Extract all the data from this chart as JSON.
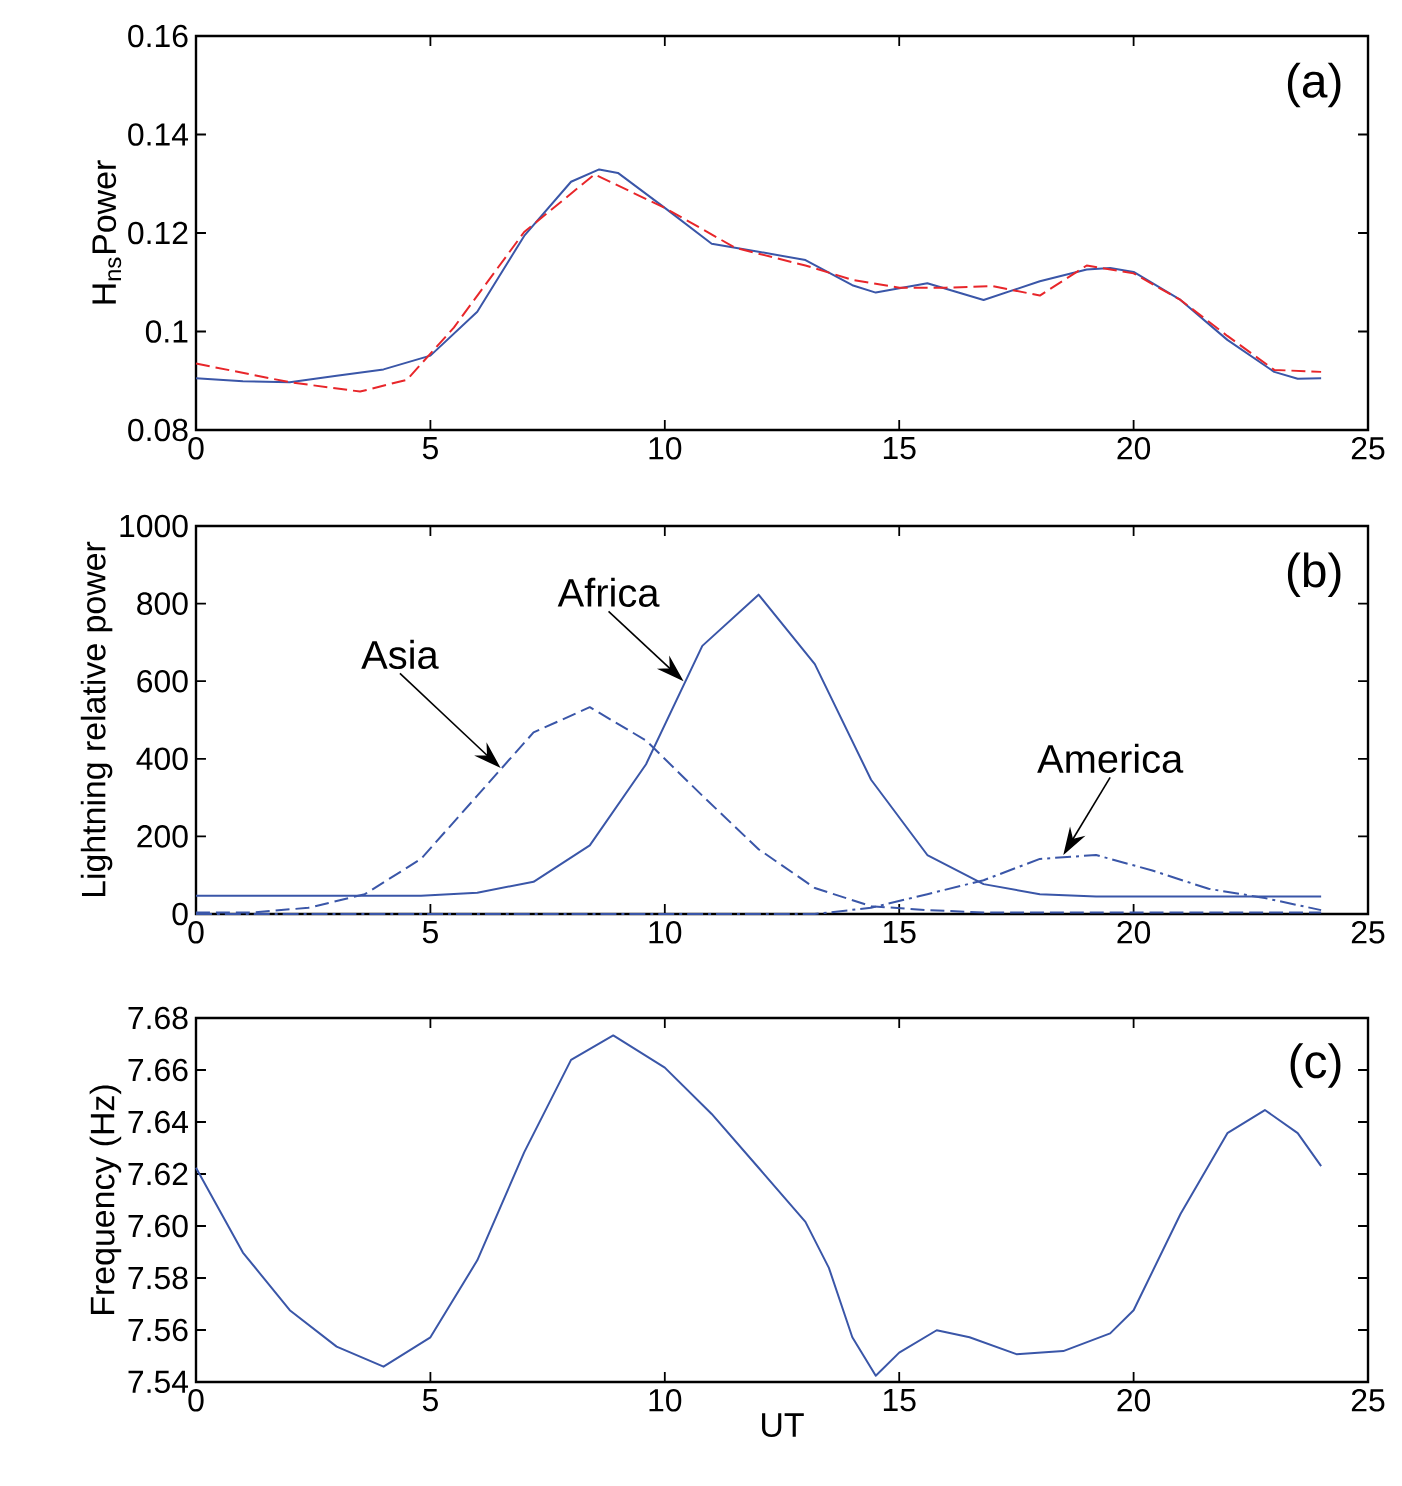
{
  "chart_data": [
    {
      "type": "line",
      "ylabel": "H$_{ns}$Power",
      "xlim": [
        0,
        25
      ],
      "xticks": [
        0,
        5,
        10,
        15,
        20,
        25
      ],
      "ylim": [
        0.08,
        0.16
      ],
      "yticks": [
        0.08,
        0.1,
        0.12,
        0.14,
        0.16
      ],
      "annotations": [
        "(a)"
      ],
      "series": [
        {
          "color": "#3a56a8",
          "line_style": "solid",
          "x": [
            0,
            1,
            2,
            3,
            4,
            5,
            6,
            7,
            8,
            8.6,
            9,
            10,
            11,
            12,
            13,
            14,
            14.5,
            15.6,
            16.8,
            18,
            19,
            19.5,
            20,
            21,
            22,
            23,
            23.5,
            24
          ],
          "values": [
            0.0905,
            0.0899,
            0.0897,
            0.091,
            0.0923,
            0.0951,
            0.104,
            0.1194,
            0.1304,
            0.1329,
            0.1322,
            0.1251,
            0.1178,
            0.1162,
            0.1145,
            0.1094,
            0.1079,
            0.1098,
            0.1064,
            0.1102,
            0.1126,
            0.1129,
            0.1121,
            0.1064,
            0.0983,
            0.0918,
            0.0904,
            0.0905
          ]
        },
        {
          "color": "#e8262a",
          "line_style": "dashed",
          "x": [
            0,
            2,
            3.5,
            4.5,
            5.5,
            7,
            8.5,
            10,
            11.5,
            13,
            14,
            15,
            16,
            17,
            18,
            19,
            20,
            21,
            22,
            23,
            24
          ],
          "values": [
            0.0935,
            0.0897,
            0.0878,
            0.0902,
            0.1008,
            0.1202,
            0.1319,
            0.1251,
            0.117,
            0.1134,
            0.1105,
            0.1089,
            0.1089,
            0.1092,
            0.1073,
            0.1134,
            0.1118,
            0.1064,
            0.0991,
            0.0922,
            0.0918
          ]
        }
      ]
    },
    {
      "type": "line",
      "ylabel": "Lightning relative power",
      "xlim": [
        0,
        25
      ],
      "xticks": [
        0,
        5,
        10,
        15,
        20,
        25
      ],
      "ylim": [
        0,
        1000
      ],
      "yticks": [
        0,
        200,
        400,
        600,
        800,
        1000
      ],
      "annotations": [
        "(b)",
        {
          "text": "Africa",
          "x": 10.4,
          "y": 600
        },
        {
          "text": "Asia",
          "x": 6.5,
          "y": 376
        },
        {
          "text": "America",
          "x": 18.5,
          "y": 152
        }
      ],
      "series": [
        {
          "color": "#3a56a8",
          "line_style": "solid",
          "x": [
            0,
            1.2,
            2.4,
            3.6,
            4.8,
            6,
            7.2,
            8.4,
            9.6,
            10.8,
            12,
            13.2,
            14.4,
            15.6,
            16.8,
            18,
            19.2,
            20.4,
            21.6,
            22.8,
            24
          ],
          "values": [
            47,
            47,
            47,
            47,
            47,
            55,
            83,
            177,
            386,
            691,
            823,
            644,
            346,
            152,
            77,
            51,
            45,
            45,
            45,
            45,
            45
          ]
        },
        {
          "color": "#3a56a8",
          "line_style": "dashed",
          "x": [
            0,
            1.2,
            2.4,
            3.6,
            4.8,
            6,
            7.2,
            8.4,
            9.6,
            10.8,
            12,
            13.2,
            14.4,
            15.6,
            16.8,
            18,
            19.2,
            20.4,
            21.6,
            22.8,
            24
          ],
          "values": [
            4,
            4,
            16,
            51,
            142,
            305,
            468,
            533,
            447,
            305,
            167,
            67,
            20,
            10,
            4,
            4,
            4,
            4,
            4,
            4,
            4
          ]
        },
        {
          "color": "#3a56a8",
          "line_style": "dashdot",
          "x": [
            0,
            1.2,
            2.4,
            3.6,
            4.8,
            6,
            7.2,
            8.4,
            9.6,
            10.8,
            12,
            13.2,
            14.4,
            15.6,
            16.8,
            18,
            19.2,
            20.4,
            21.6,
            22.8,
            24
          ],
          "values": [
            0,
            0,
            0,
            0,
            0,
            0,
            0,
            0,
            0,
            0,
            0,
            0,
            16,
            51,
            87,
            142,
            152,
            112,
            65,
            41,
            10
          ]
        }
      ]
    },
    {
      "type": "line",
      "xlabel": "UT",
      "ylabel": "Frequency (Hz)",
      "xlim": [
        0,
        25
      ],
      "xticks": [
        0,
        5,
        10,
        15,
        20,
        25
      ],
      "ylim": [
        7.54,
        7.68
      ],
      "yticks": [
        {
          "value": 7.54,
          "label": "7.54"
        },
        {
          "value": 7.56,
          "label": "7.56"
        },
        {
          "value": 7.58,
          "label": "7.58"
        },
        {
          "value": 7.6,
          "label": "7.60"
        },
        {
          "value": 7.62,
          "label": "7.62"
        },
        {
          "value": 7.64,
          "label": "7.64"
        },
        {
          "value": 7.66,
          "label": "7.66"
        },
        {
          "value": 7.68,
          "label": "7.68"
        }
      ],
      "annotations": [
        "(c)"
      ],
      "series": [
        {
          "color": "#3a56a8",
          "line_style": "solid",
          "x": [
            0,
            1,
            2,
            3,
            4,
            5,
            6,
            7,
            8,
            8.9,
            10,
            11,
            12,
            13,
            13.5,
            14,
            14.5,
            15,
            15.8,
            16.5,
            17.5,
            18.5,
            19.5,
            20,
            21,
            22,
            22.8,
            23.5,
            24
          ],
          "values": [
            7.6224,
            7.5898,
            7.5676,
            7.5536,
            7.5459,
            7.5572,
            7.5868,
            7.6283,
            7.6639,
            7.6733,
            7.6609,
            7.6431,
            7.6224,
            7.6016,
            7.5839,
            7.5572,
            7.5424,
            7.5513,
            7.5599,
            7.5572,
            7.5507,
            7.5519,
            7.5587,
            7.5676,
            7.6046,
            7.6357,
            7.6446,
            7.6357,
            7.623
          ]
        }
      ]
    }
  ]
}
